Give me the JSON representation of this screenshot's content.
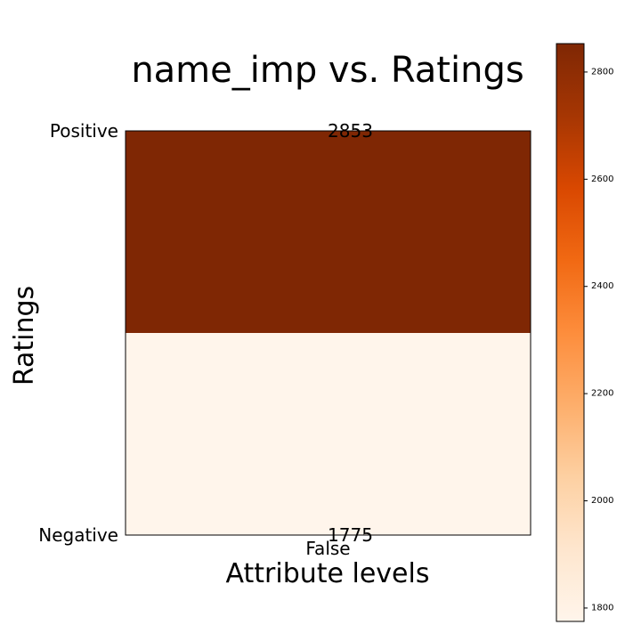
{
  "chart_data": {
    "type": "heatmap",
    "title": "name_imp vs. Ratings",
    "xlabel": "Attribute levels",
    "ylabel": "Ratings",
    "x_categories": [
      "False"
    ],
    "y_categories": [
      "Negative",
      "Positive"
    ],
    "values": [
      [
        1775
      ],
      [
        2853
      ]
    ],
    "cell_labels": [
      [
        "1775"
      ],
      [
        "2853"
      ]
    ],
    "colormap": "Oranges",
    "colormap_stops": [
      "#fff5eb",
      "#fee6ce",
      "#fdd0a2",
      "#fdae6b",
      "#fd8d3c",
      "#f16913",
      "#d94801",
      "#a63603",
      "#7f2704"
    ],
    "colorbar": {
      "range": [
        1775,
        2853
      ],
      "ticks": [
        1800,
        2000,
        2200,
        2400,
        2600,
        2800
      ],
      "tick_labels": [
        "1800",
        "2000",
        "2200",
        "2400",
        "2600",
        "2800"
      ]
    }
  }
}
